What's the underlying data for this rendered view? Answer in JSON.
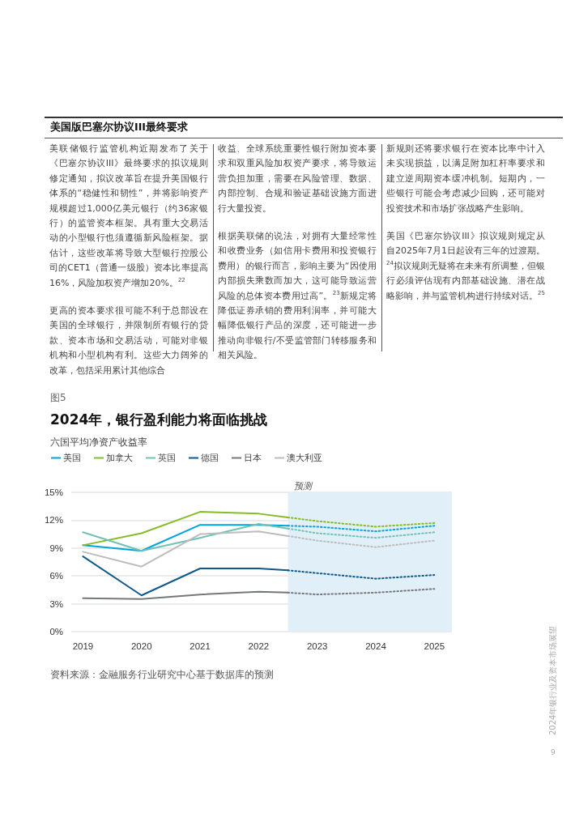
{
  "chart_data": {
    "type": "line",
    "title": "2024年，银行盈利能力将面临挑战",
    "subtitle": "六国平均净资产收益率",
    "annotations": [
      "美国版巴塞尔协议III最终要求",
      "美联储银行监管机构近期发布了关于《巴塞尔协议III》最终要求的拟议规则修定通知，拟议改革旨在提升美国银行体系的“稳健性和韧性”，并将影响资产规模超过1,000亿美元银行（约36家银行）的监管资本框架。具有重大交易活动的小型银行也须遵循新风险框架。据估计，这些改革将导致大型银行控股公司的CET1（普通一级股）资本比率提高16%，风险加权资产增加20%。$^{22}$",
      "更高的资本要求很可能不利于总部设在美国的全球银行，并限制所有银行的贷款、资本市场和交易活动，可能对非银机构和小型机构有利。这些大力阔斧的改革，包括采用累计其他综合",
      "收益、全球系统重要性银行附加资本要求和双重风险加权资产要求，将导致运营负担加重，需要在风险管理、数据、内部控制、合规和验证基础设施方面进行大量投资。",
      "根据美联储的说法，对拥有大量经常性和收费业务（如信用卡费用和投资银行费用）的银行而言，影响主要为“因使用内部损失乘数而加大，这可能导致运营风险的总体资本费用过高”。$^{23}$新规定将降低证券承销的费用利润率，并可能大幅降低银行产品的深度，还可能进一步推动向非银行/不受监管部门转移服务和相关风险。",
      "新规则还将要求银行在资本比率中计入未实现损益，以满足附加杠杆率要求和建立逆周期资本缓冲机制。短期内，一些银行可能会考虑减少回购，还可能对投资技术和市场扩张战略产生影响。",
      "美国《巴塞尔协议III》拟议规则规定从自2025年7月1日起设有三年的过渡期。$^{24}$拟议规则无疑将在未来有所调整，但银行必须评估现有内部基础设施、潜在战略影响，并与监管机构进行持续对话。$^{25}$",
      "图5",
      "资料来源：金融服务行业研究中心基于数据库的预测",
      "2024年银行业及资本市场展望",
      "9"
    ],
    "xlim": [
      2018.8,
      2025.3
    ],
    "xticks": [
      2019,
      2020,
      2021,
      2022,
      2023,
      2024,
      2025
    ],
    "ylim": [
      0,
      15
    ],
    "yticks": [
      {
        "value": 0,
        "label": "0%"
      },
      {
        "value": 3,
        "label": "3%"
      },
      {
        "value": 6,
        "label": "6%"
      },
      {
        "value": 9,
        "label": "9%"
      },
      {
        "value": 12,
        "label": "12%"
      },
      {
        "value": 15,
        "label": "15%"
      }
    ],
    "grid": "y",
    "legend": "top left",
    "marker": "none",
    "bands": [
      {
        "axis": "x",
        "from": 2022.5,
        "to": 2025.3,
        "label": "预测",
        "color": "#e1eff9"
      }
    ],
    "series": [
      {
        "name": "美国",
        "color": "#00a3e0",
        "x": [
          2019,
          2020,
          2021,
          2022,
          2022.5
        ],
        "values": [
          9.3,
          8.7,
          11.5,
          11.5,
          11.4
        ]
      },
      {
        "name": "加拿大",
        "color": "#86bc25",
        "x": [
          2019,
          2020,
          2021,
          2022,
          2022.5
        ],
        "values": [
          9.3,
          10.6,
          12.9,
          12.7,
          12.3
        ]
      },
      {
        "name": "英国",
        "color": "#6fc2b4",
        "x": [
          2019,
          2020,
          2021,
          2022,
          2022.5
        ],
        "values": [
          10.7,
          8.7,
          10.1,
          11.6,
          11.1
        ]
      },
      {
        "name": "德国",
        "color": "#0d5a8a",
        "x": [
          2019,
          2020,
          2021,
          2022,
          2022.5
        ],
        "values": [
          8.1,
          3.9,
          6.8,
          6.8,
          6.6
        ]
      },
      {
        "name": "日本",
        "color": "#75787b",
        "x": [
          2019,
          2020,
          2021,
          2022,
          2022.5
        ],
        "values": [
          3.6,
          3.5,
          4.0,
          4.3,
          4.2
        ]
      },
      {
        "name": "澳大利亚",
        "color": "#bbbcbc",
        "x": [
          2019,
          2020,
          2021,
          2022,
          2022.5
        ],
        "values": [
          8.6,
          7.0,
          10.5,
          10.8,
          10.3
        ]
      },
      {
        "color": "#00a3e0",
        "line_style": "dotted",
        "x": [
          2022.5,
          2023,
          2024,
          2025
        ],
        "values": [
          11.4,
          11.3,
          10.8,
          11.4
        ]
      },
      {
        "color": "#86bc25",
        "line_style": "dotted",
        "x": [
          2022.5,
          2023,
          2024,
          2025
        ],
        "values": [
          12.3,
          11.9,
          11.3,
          11.7
        ]
      },
      {
        "color": "#6fc2b4",
        "line_style": "dotted",
        "x": [
          2022.5,
          2023,
          2024,
          2025
        ],
        "values": [
          11.1,
          10.6,
          10.1,
          10.7
        ]
      },
      {
        "color": "#0d5a8a",
        "line_style": "dotted",
        "x": [
          2022.5,
          2023,
          2024,
          2025
        ],
        "values": [
          6.6,
          6.3,
          5.7,
          6.1
        ]
      },
      {
        "color": "#75787b",
        "line_style": "dotted",
        "x": [
          2022.5,
          2023,
          2024,
          2025
        ],
        "values": [
          4.2,
          4.0,
          4.2,
          4.6
        ]
      },
      {
        "color": "#bbbcbc",
        "line_style": "dotted",
        "x": [
          2022.5,
          2023,
          2024,
          2025
        ],
        "values": [
          10.3,
          9.8,
          9.1,
          9.8
        ]
      }
    ]
  }
}
